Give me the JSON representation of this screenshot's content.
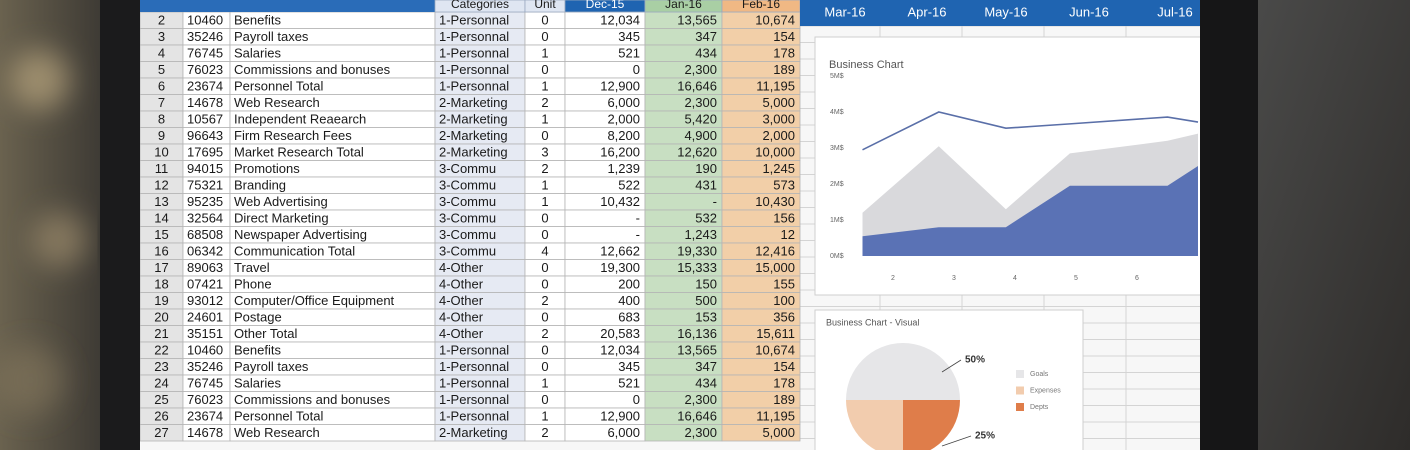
{
  "sheet": {
    "headers": [
      "Categories",
      "Unit",
      "Dec-15",
      "Jan-16",
      "Feb-16"
    ],
    "months": [
      "Mar-16",
      "Apr-16",
      "May-16",
      "Jun-16",
      "Jul-16"
    ],
    "rows": [
      [
        "2",
        "10460",
        "Benefits",
        "1-Personnal",
        "0",
        "12,034",
        "13,565",
        "10,674"
      ],
      [
        "3",
        "35246",
        "Payroll taxes",
        "1-Personnal",
        "0",
        "345",
        "347",
        "154"
      ],
      [
        "4",
        "76745",
        "Salaries",
        "1-Personnal",
        "1",
        "521",
        "434",
        "178"
      ],
      [
        "5",
        "76023",
        "Commissions and bonuses",
        "1-Personnal",
        "0",
        "0",
        "2,300",
        "189"
      ],
      [
        "6",
        "23674",
        "Personnel Total",
        "1-Personnal",
        "1",
        "12,900",
        "16,646",
        "11,195"
      ],
      [
        "7",
        "14678",
        "Web Research",
        "2-Marketing",
        "2",
        "6,000",
        "2,300",
        "5,000"
      ],
      [
        "8",
        "10567",
        "Independent Reaearch",
        "2-Marketing",
        "1",
        "2,000",
        "5,420",
        "3,000"
      ],
      [
        "9",
        "96643",
        "Firm Research Fees",
        "2-Marketing",
        "0",
        "8,200",
        "4,900",
        "2,000"
      ],
      [
        "10",
        "17695",
        "Market Research Total",
        "2-Marketing",
        "3",
        "16,200",
        "12,620",
        "10,000"
      ],
      [
        "11",
        "94015",
        "Promotions",
        "3-Commu",
        "2",
        "1,239",
        "190",
        "1,245"
      ],
      [
        "12",
        "75321",
        "Branding",
        "3-Commu",
        "1",
        "522",
        "431",
        "573"
      ],
      [
        "13",
        "95235",
        "Web Advertising",
        "3-Commu",
        "1",
        "10,432",
        "-",
        "10,430"
      ],
      [
        "14",
        "32564",
        "Direct Marketing",
        "3-Commu",
        "0",
        "-",
        "532",
        "156"
      ],
      [
        "15",
        "68508",
        "Newspaper Advertising",
        "3-Commu",
        "0",
        "-",
        "1,243",
        "12"
      ],
      [
        "16",
        "06342",
        "Communication Total",
        "3-Commu",
        "4",
        "12,662",
        "19,330",
        "12,416"
      ],
      [
        "17",
        "89063",
        "Travel",
        "4-Other",
        "0",
        "19,300",
        "15,333",
        "15,000"
      ],
      [
        "18",
        "07421",
        "Phone",
        "4-Other",
        "0",
        "200",
        "150",
        "155"
      ],
      [
        "19",
        "93012",
        "Computer/Office Equipment",
        "4-Other",
        "2",
        "400",
        "500",
        "100"
      ],
      [
        "20",
        "24601",
        "Postage",
        "4-Other",
        "0",
        "683",
        "153",
        "356"
      ],
      [
        "21",
        "35151",
        "Other Total",
        "4-Other",
        "2",
        "20,583",
        "16,136",
        "15,611"
      ],
      [
        "22",
        "10460",
        "Benefits",
        "1-Personnal",
        "0",
        "12,034",
        "13,565",
        "10,674"
      ],
      [
        "23",
        "35246",
        "Payroll taxes",
        "1-Personnal",
        "0",
        "345",
        "347",
        "154"
      ],
      [
        "24",
        "76745",
        "Salaries",
        "1-Personnal",
        "1",
        "521",
        "434",
        "178"
      ],
      [
        "25",
        "76023",
        "Commissions and bonuses",
        "1-Personnal",
        "0",
        "0",
        "2,300",
        "189"
      ],
      [
        "26",
        "23674",
        "Personnel Total",
        "1-Personnal",
        "1",
        "12,900",
        "16,646",
        "11,195"
      ],
      [
        "27",
        "14678",
        "Web Research",
        "2-Marketing",
        "2",
        "6,000",
        "2,300",
        "5,000"
      ]
    ]
  },
  "charts": {
    "area": {
      "type": "area",
      "title": "Business Chart",
      "x": [
        1.5,
        2.75,
        3.85,
        4.9,
        6.5,
        7
      ],
      "xlim": [
        1,
        7
      ],
      "xticks": [
        2,
        3,
        4,
        5,
        6
      ],
      "ylim": [
        0,
        5
      ],
      "yticks": [
        {
          "value": 0,
          "label": "0M$"
        },
        {
          "value": 1,
          "label": "1M$"
        },
        {
          "value": 2,
          "label": "2M$"
        },
        {
          "value": 3,
          "label": "3M$"
        },
        {
          "value": 4,
          "label": "4M$"
        },
        {
          "value": 5,
          "label": "5M$"
        }
      ],
      "series": [
        {
          "kind": "area",
          "color": "#d9d9dc",
          "values": [
            1.2,
            3.05,
            1.3,
            2.85,
            3.2,
            3.4
          ]
        },
        {
          "kind": "area",
          "color": "#5a72b5",
          "values": [
            0.55,
            0.8,
            0.8,
            1.95,
            1.95,
            2.5
          ]
        },
        {
          "kind": "line",
          "color": "#5a6fa8",
          "values": [
            2.95,
            4.0,
            3.55,
            3.67,
            3.86,
            3.72
          ]
        }
      ]
    },
    "pie": {
      "type": "pie",
      "title": "Business Chart - Visual",
      "labels": [
        "Goals",
        "Expenses",
        "Depts"
      ],
      "values": [
        50,
        25,
        25
      ],
      "value_labels": [
        "50%",
        null,
        "25%"
      ],
      "colors": [
        "#e6e6e8",
        "#f2ccae",
        "#df7d4a"
      ]
    }
  }
}
